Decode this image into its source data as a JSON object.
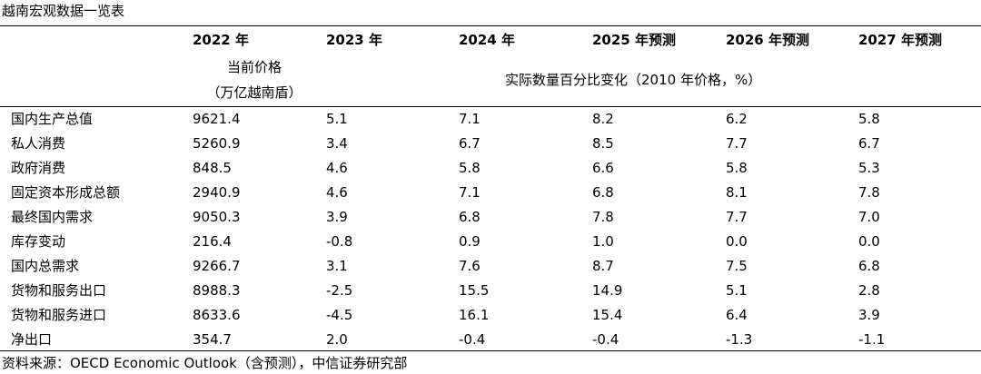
{
  "title": "越南宏观数据一览表",
  "header": {
    "years": [
      "2022 年",
      "2023 年",
      "2024 年",
      "2025 年预测",
      "2026 年预测",
      "2027 年预测"
    ],
    "unit_left_line1": "当前价格",
    "unit_left_line2": "（万亿越南盾）",
    "unit_right": "实际数量百分比变化（2010 年价格，%）"
  },
  "rows": [
    {
      "label": "国内生产总值",
      "values": [
        "9621.4",
        "5.1",
        "7.1",
        "8.2",
        "6.2",
        "5.8"
      ]
    },
    {
      "label": "私人消费",
      "values": [
        "5260.9",
        "3.4",
        "6.7",
        "8.5",
        "7.7",
        "6.7"
      ]
    },
    {
      "label": "政府消费",
      "values": [
        "848.5",
        "4.6",
        "5.8",
        "6.6",
        "5.8",
        "5.3"
      ]
    },
    {
      "label": "固定资本形成总额",
      "values": [
        "2940.9",
        "4.6",
        "7.1",
        "6.8",
        "8.1",
        "7.8"
      ]
    },
    {
      "label": "最终国内需求",
      "values": [
        "9050.3",
        "3.9",
        "6.8",
        "7.8",
        "7.7",
        "7.0"
      ]
    },
    {
      "label": "库存变动",
      "values": [
        "216.4",
        "-0.8",
        "0.9",
        "1.0",
        "0.0",
        "0.0"
      ]
    },
    {
      "label": "国内总需求",
      "values": [
        "9266.7",
        "3.1",
        "7.6",
        "8.7",
        "7.5",
        "6.8"
      ]
    },
    {
      "label": "货物和服务出口",
      "values": [
        "8988.3",
        "-2.5",
        "15.5",
        "14.9",
        "5.1",
        "2.8"
      ]
    },
    {
      "label": "货物和服务进口",
      "values": [
        "8633.6",
        "-4.5",
        "16.1",
        "15.4",
        "6.4",
        "3.9"
      ]
    },
    {
      "label": "净出口",
      "values": [
        "354.7",
        "2.0",
        "-0.4",
        "-0.4",
        "-1.3",
        "-1.1"
      ]
    }
  ],
  "source": "资料来源：OECD Economic Outlook（含预测），中信证券研究部"
}
